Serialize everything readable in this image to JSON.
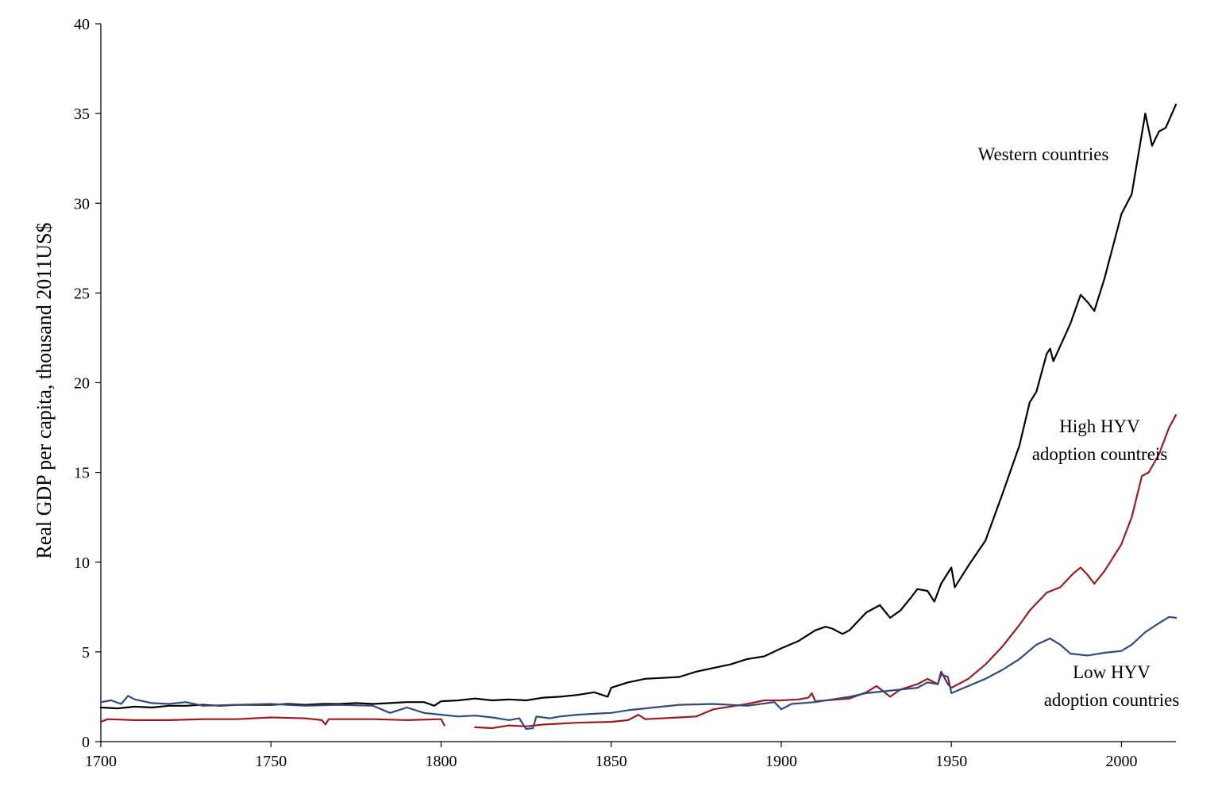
{
  "chart_data": {
    "type": "line",
    "xlim": [
      1700,
      2016
    ],
    "ylim": [
      0,
      40
    ],
    "x_ticks": [
      1700,
      1750,
      1800,
      1850,
      1900,
      1950,
      2000
    ],
    "y_ticks": [
      0,
      5,
      10,
      15,
      20,
      25,
      30,
      35,
      40
    ],
    "xlabel": "",
    "ylabel": "Real GDP per capita, thousand 2011US$",
    "grid": false,
    "series": [
      {
        "name": "Western countries",
        "color": "#000000",
        "label_lines": [
          "Western countries"
        ],
        "points": [
          [
            1700,
            1.9
          ],
          [
            1705,
            1.85
          ],
          [
            1710,
            1.95
          ],
          [
            1715,
            1.9
          ],
          [
            1720,
            2.0
          ],
          [
            1725,
            2.0
          ],
          [
            1730,
            2.05
          ],
          [
            1735,
            2.0
          ],
          [
            1740,
            2.05
          ],
          [
            1745,
            2.05
          ],
          [
            1750,
            2.05
          ],
          [
            1755,
            2.1
          ],
          [
            1760,
            2.05
          ],
          [
            1765,
            2.1
          ],
          [
            1770,
            2.1
          ],
          [
            1775,
            2.15
          ],
          [
            1780,
            2.1
          ],
          [
            1785,
            2.15
          ],
          [
            1790,
            2.2
          ],
          [
            1795,
            2.2
          ],
          [
            1798,
            2.0
          ],
          [
            1800,
            2.25
          ],
          [
            1805,
            2.3
          ],
          [
            1810,
            2.4
          ],
          [
            1815,
            2.3
          ],
          [
            1820,
            2.35
          ],
          [
            1825,
            2.3
          ],
          [
            1830,
            2.45
          ],
          [
            1835,
            2.5
          ],
          [
            1840,
            2.6
          ],
          [
            1845,
            2.75
          ],
          [
            1849,
            2.5
          ],
          [
            1850,
            3.0
          ],
          [
            1855,
            3.3
          ],
          [
            1860,
            3.5
          ],
          [
            1865,
            3.55
          ],
          [
            1870,
            3.6
          ],
          [
            1875,
            3.9
          ],
          [
            1880,
            4.1
          ],
          [
            1885,
            4.3
          ],
          [
            1890,
            4.6
          ],
          [
            1895,
            4.75
          ],
          [
            1900,
            5.2
          ],
          [
            1905,
            5.6
          ],
          [
            1910,
            6.2
          ],
          [
            1913,
            6.4
          ],
          [
            1915,
            6.3
          ],
          [
            1918,
            6.0
          ],
          [
            1920,
            6.2
          ],
          [
            1925,
            7.2
          ],
          [
            1929,
            7.6
          ],
          [
            1932,
            6.9
          ],
          [
            1935,
            7.3
          ],
          [
            1938,
            8.0
          ],
          [
            1940,
            8.5
          ],
          [
            1943,
            8.4
          ],
          [
            1945,
            7.8
          ],
          [
            1947,
            8.8
          ],
          [
            1950,
            9.7
          ],
          [
            1951,
            8.6
          ],
          [
            1955,
            9.8
          ],
          [
            1960,
            11.2
          ],
          [
            1965,
            13.8
          ],
          [
            1970,
            16.5
          ],
          [
            1973,
            18.9
          ],
          [
            1975,
            19.5
          ],
          [
            1978,
            21.6
          ],
          [
            1979,
            21.9
          ],
          [
            1980,
            21.2
          ],
          [
            1985,
            23.3
          ],
          [
            1988,
            24.9
          ],
          [
            1990,
            24.5
          ],
          [
            1992,
            24.0
          ],
          [
            1995,
            25.8
          ],
          [
            2000,
            29.4
          ],
          [
            2003,
            30.5
          ],
          [
            2007,
            35.0
          ],
          [
            2009,
            33.2
          ],
          [
            2011,
            34.0
          ],
          [
            2013,
            34.2
          ],
          [
            2016,
            35.5
          ]
        ]
      },
      {
        "name": "High HYV adoption countreis",
        "color": "#9b1b1e",
        "label_lines": [
          "High HYV",
          "adoption countreis"
        ],
        "points": [
          [
            1700,
            1.1
          ],
          [
            1702,
            1.25
          ],
          [
            1710,
            1.2
          ],
          [
            1720,
            1.2
          ],
          [
            1730,
            1.25
          ],
          [
            1740,
            1.25
          ],
          [
            1750,
            1.35
          ],
          [
            1760,
            1.3
          ],
          [
            1765,
            1.2
          ],
          [
            1766,
            0.95
          ],
          [
            1767,
            1.25
          ],
          [
            1780,
            1.25
          ],
          [
            1790,
            1.2
          ],
          [
            1800,
            1.25
          ],
          [
            1801,
            0.9
          ],
          null,
          [
            1810,
            0.8
          ],
          [
            1815,
            0.75
          ],
          [
            1820,
            0.9
          ],
          [
            1825,
            0.85
          ],
          [
            1830,
            0.95
          ],
          [
            1840,
            1.05
          ],
          [
            1850,
            1.1
          ],
          [
            1855,
            1.2
          ],
          [
            1858,
            1.5
          ],
          [
            1860,
            1.25
          ],
          [
            1870,
            1.35
          ],
          [
            1875,
            1.4
          ],
          [
            1880,
            1.8
          ],
          [
            1890,
            2.1
          ],
          [
            1895,
            2.3
          ],
          [
            1900,
            2.3
          ],
          [
            1905,
            2.35
          ],
          [
            1908,
            2.45
          ],
          [
            1909,
            2.7
          ],
          [
            1910,
            2.25
          ],
          [
            1920,
            2.4
          ],
          [
            1925,
            2.75
          ],
          [
            1928,
            3.1
          ],
          [
            1932,
            2.5
          ],
          [
            1935,
            2.9
          ],
          [
            1940,
            3.2
          ],
          [
            1943,
            3.5
          ],
          [
            1946,
            3.2
          ],
          [
            1947,
            3.9
          ],
          [
            1949,
            3.2
          ],
          [
            1950,
            3.0
          ],
          [
            1955,
            3.5
          ],
          [
            1960,
            4.3
          ],
          [
            1965,
            5.3
          ],
          [
            1970,
            6.5
          ],
          [
            1973,
            7.3
          ],
          [
            1978,
            8.3
          ],
          [
            1982,
            8.6
          ],
          [
            1986,
            9.4
          ],
          [
            1988,
            9.7
          ],
          [
            1990,
            9.3
          ],
          [
            1992,
            8.8
          ],
          [
            1995,
            9.5
          ],
          [
            2000,
            11.0
          ],
          [
            2003,
            12.5
          ],
          [
            2006,
            14.8
          ],
          [
            2008,
            15.0
          ],
          [
            2011,
            16.0
          ],
          [
            2014,
            17.5
          ],
          [
            2016,
            18.2
          ]
        ]
      },
      {
        "name": "Low HYV adoption countries",
        "color": "#2f4b7c",
        "label_lines": [
          "Low HYV",
          "adoption countries"
        ],
        "points": [
          [
            1700,
            2.2
          ],
          [
            1703,
            2.3
          ],
          [
            1706,
            2.1
          ],
          [
            1708,
            2.55
          ],
          [
            1710,
            2.35
          ],
          [
            1715,
            2.15
          ],
          [
            1720,
            2.1
          ],
          [
            1725,
            2.2
          ],
          [
            1730,
            2.0
          ],
          [
            1740,
            2.05
          ],
          [
            1750,
            2.1
          ],
          [
            1760,
            2.0
          ],
          [
            1770,
            2.05
          ],
          [
            1780,
            2.0
          ],
          [
            1785,
            1.6
          ],
          [
            1790,
            1.9
          ],
          [
            1795,
            1.6
          ],
          [
            1800,
            1.5
          ],
          [
            1805,
            1.4
          ],
          [
            1810,
            1.45
          ],
          [
            1815,
            1.35
          ],
          [
            1820,
            1.2
          ],
          [
            1823,
            1.3
          ],
          [
            1825,
            0.7
          ],
          [
            1827,
            0.75
          ],
          [
            1828,
            1.4
          ],
          [
            1832,
            1.3
          ],
          [
            1835,
            1.4
          ],
          [
            1840,
            1.5
          ],
          [
            1845,
            1.55
          ],
          [
            1850,
            1.6
          ],
          [
            1855,
            1.75
          ],
          [
            1860,
            1.85
          ],
          [
            1865,
            1.95
          ],
          [
            1870,
            2.05
          ],
          [
            1880,
            2.1
          ],
          [
            1890,
            2.0
          ],
          [
            1898,
            2.2
          ],
          [
            1900,
            1.8
          ],
          [
            1903,
            2.1
          ],
          [
            1910,
            2.2
          ],
          [
            1915,
            2.35
          ],
          [
            1920,
            2.5
          ],
          [
            1925,
            2.7
          ],
          [
            1930,
            2.8
          ],
          [
            1935,
            2.9
          ],
          [
            1940,
            3.0
          ],
          [
            1943,
            3.3
          ],
          [
            1946,
            3.2
          ],
          [
            1947,
            3.75
          ],
          [
            1949,
            3.6
          ],
          [
            1950,
            2.7
          ],
          [
            1955,
            3.1
          ],
          [
            1960,
            3.5
          ],
          [
            1965,
            4.0
          ],
          [
            1970,
            4.6
          ],
          [
            1975,
            5.4
          ],
          [
            1979,
            5.75
          ],
          [
            1982,
            5.4
          ],
          [
            1985,
            4.9
          ],
          [
            1990,
            4.8
          ],
          [
            1995,
            4.95
          ],
          [
            2000,
            5.05
          ],
          [
            2003,
            5.4
          ],
          [
            2007,
            6.1
          ],
          [
            2011,
            6.6
          ],
          [
            2014,
            6.95
          ],
          [
            2016,
            6.9
          ]
        ]
      }
    ]
  }
}
